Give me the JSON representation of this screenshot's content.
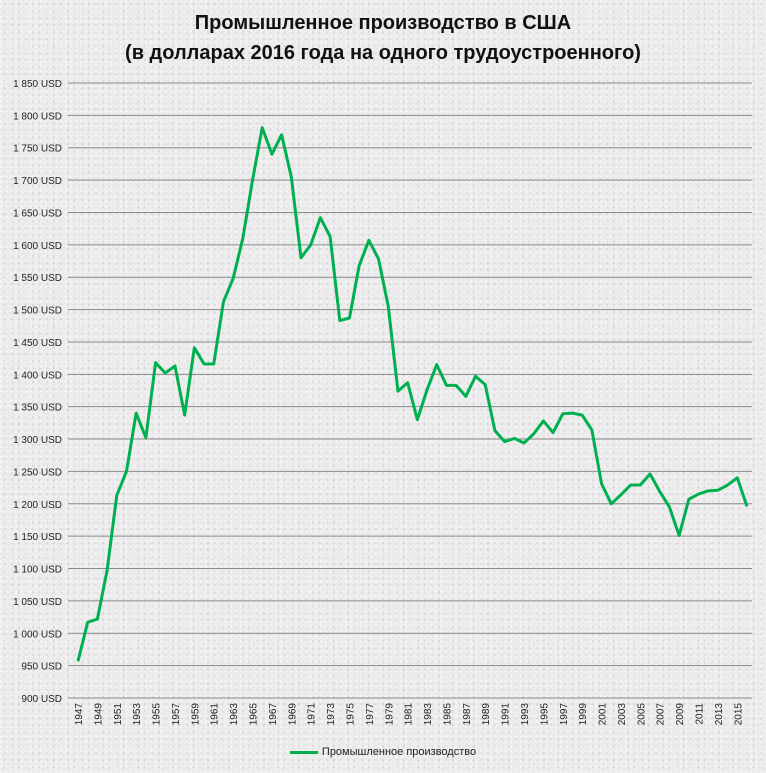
{
  "chart_data": {
    "type": "line",
    "title_line1": "Промышленное производство в США",
    "title_line2": "(в долларах  2016 года на одного трудоустроенного)",
    "xlabel": "",
    "ylabel": "",
    "ylim": [
      900,
      1850
    ],
    "y_step": 50,
    "y_suffix": " USD",
    "grid": true,
    "legend_position": "bottom",
    "line_color": "#00b050",
    "x": [
      1947,
      1948,
      1949,
      1950,
      1951,
      1952,
      1953,
      1954,
      1955,
      1956,
      1957,
      1958,
      1959,
      1960,
      1961,
      1962,
      1963,
      1964,
      1965,
      1966,
      1967,
      1968,
      1969,
      1970,
      1971,
      1972,
      1973,
      1974,
      1975,
      1976,
      1977,
      1978,
      1979,
      1980,
      1981,
      1982,
      1983,
      1984,
      1985,
      1986,
      1987,
      1988,
      1989,
      1990,
      1991,
      1992,
      1993,
      1994,
      1995,
      1996,
      1997,
      1998,
      1999,
      2000,
      2001,
      2002,
      2003,
      2004,
      2005,
      2006,
      2007,
      2008,
      2009,
      2010,
      2011,
      2012,
      2013,
      2014,
      2015,
      2016
    ],
    "series": [
      {
        "name": "Промышленное производство",
        "values": [
          957,
          1017,
          1022,
          1097,
          1213,
          1250,
          1340,
          1302,
          1418,
          1402,
          1413,
          1337,
          1441,
          1416,
          1416,
          1512,
          1548,
          1610,
          1700,
          1781,
          1740,
          1770,
          1705,
          1580,
          1600,
          1642,
          1613,
          1483,
          1487,
          1568,
          1607,
          1578,
          1505,
          1374,
          1387,
          1330,
          1376,
          1415,
          1383,
          1383,
          1366,
          1397,
          1384,
          1313,
          1296,
          1301,
          1294,
          1308,
          1328,
          1310,
          1339,
          1340,
          1337,
          1314,
          1231,
          1200,
          1214,
          1229,
          1229,
          1246,
          1219,
          1195,
          1151,
          1207,
          1215,
          1220,
          1221,
          1229,
          1240,
          1196
        ]
      }
    ],
    "y_tick_labels": [
      "900 USD",
      "950 USD",
      "1 000 USD",
      "1 050 USD",
      "1 100 USD",
      "1 150 USD",
      "1 200 USD",
      "1 250 USD",
      "1 300 USD",
      "1 350 USD",
      "1 400 USD",
      "1 450 USD",
      "1 500 USD",
      "1 550 USD",
      "1 600 USD",
      "1 650 USD",
      "1 700 USD",
      "1 750 USD",
      "1 800 USD",
      "1 850 USD"
    ],
    "x_tick_labels": [
      "1947",
      "1949",
      "1951",
      "1953",
      "1955",
      "1957",
      "1959",
      "1961",
      "1963",
      "1965",
      "1967",
      "1969",
      "1971",
      "1973",
      "1975",
      "1977",
      "1979",
      "1981",
      "1983",
      "1985",
      "1987",
      "1989",
      "1991",
      "1993",
      "1995",
      "1997",
      "1999",
      "2001",
      "2003",
      "2005",
      "2007",
      "2009",
      "2011",
      "2013",
      "2015"
    ]
  }
}
